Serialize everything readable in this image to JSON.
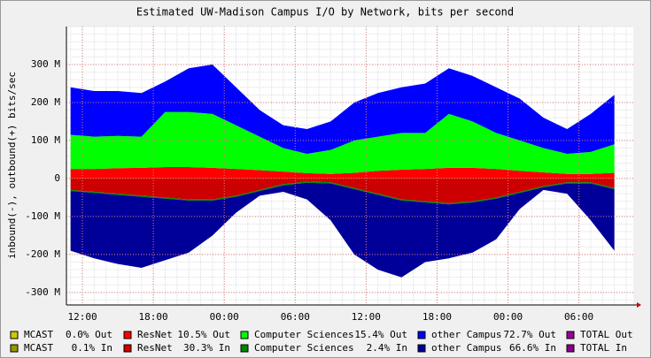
{
  "chart_data": {
    "type": "area",
    "title": "Estimated UW-Madison Campus I/O by Network, bits per second",
    "y_label": "inbound(-), outbound(+) bits/sec",
    "x": [
      11,
      13,
      15,
      17,
      19,
      21,
      23,
      25,
      27,
      29,
      31,
      33,
      35,
      37,
      39,
      41,
      43,
      45,
      47,
      49,
      51,
      53,
      55,
      57
    ],
    "xlim": [
      10.65,
      58.6
    ],
    "xticks": [
      {
        "value": 12,
        "label": "12:00"
      },
      {
        "value": 18,
        "label": "18:00"
      },
      {
        "value": 24,
        "label": "00:00"
      },
      {
        "value": 30,
        "label": "06:00"
      },
      {
        "value": 36,
        "label": "12:00"
      },
      {
        "value": 42,
        "label": "18:00"
      },
      {
        "value": 48,
        "label": "00:00"
      },
      {
        "value": 54,
        "label": "06:00"
      }
    ],
    "ylim": [
      -333,
      400
    ],
    "yticks": [
      {
        "value": -300,
        "label": "-300 M"
      },
      {
        "value": -200,
        "label": "-200 M"
      },
      {
        "value": -100,
        "label": "-100 M"
      },
      0,
      {
        "value": 100,
        "label": "100 M"
      },
      {
        "value": 200,
        "label": "200 M"
      },
      {
        "value": 300,
        "label": "300 M"
      }
    ],
    "grid": true,
    "series": [
      {
        "name": "MCAST",
        "stat": "0.0% Out",
        "color": "#cccc00",
        "values": [
          0,
          0,
          0,
          0,
          0,
          0,
          0,
          0,
          0,
          0,
          0,
          0,
          0,
          0,
          0,
          0,
          0,
          0,
          0,
          0,
          0,
          0,
          0,
          0
        ]
      },
      {
        "name": "ResNet",
        "stat": "10.5% Out",
        "color": "#ff0000",
        "values": [
          25,
          25,
          27,
          28,
          30,
          30,
          28,
          25,
          22,
          18,
          14,
          12,
          15,
          20,
          23,
          25,
          28,
          28,
          25,
          20,
          16,
          12,
          12,
          15
        ]
      },
      {
        "name": "Computer Sciences",
        "stat": "15.4% Out",
        "color": "#00ff00",
        "values": [
          90,
          85,
          85,
          82,
          145,
          145,
          142,
          115,
          88,
          62,
          51,
          63,
          85,
          90,
          97,
          95,
          142,
          122,
          95,
          80,
          64,
          53,
          58,
          75
        ]
      },
      {
        "name": "other Campus",
        "stat": "72.7% Out",
        "color": "#0000ff",
        "values": [
          125,
          120,
          118,
          115,
          80,
          115,
          130,
          100,
          70,
          60,
          65,
          75,
          100,
          115,
          120,
          130,
          120,
          120,
          120,
          110,
          80,
          65,
          100,
          130
        ]
      },
      {
        "name": "TOTAL Out",
        "color": "#990099"
      },
      {
        "name": "MCAST",
        "stat": "0.1% In",
        "color": "#999900",
        "values": [
          -0.2,
          -0.2,
          -0.2,
          -0.2,
          -0.2,
          -0.2,
          -0.2,
          -0.2,
          -0.2,
          -0.2,
          -0.2,
          -0.2,
          -0.2,
          -0.2,
          -0.2,
          -0.2,
          -0.2,
          -0.2,
          -0.2,
          -0.2,
          -0.2,
          -0.2,
          -0.2,
          -0.2
        ]
      },
      {
        "name": "ResNet",
        "stat": "30.3% In",
        "color": "#cc0000",
        "values": [
          -30,
          -35,
          -40,
          -45,
          -50,
          -55,
          -55,
          -45,
          -30,
          -15,
          -8,
          -10,
          -25,
          -40,
          -55,
          -60,
          -65,
          -60,
          -50,
          -35,
          -20,
          -10,
          -10,
          -25
        ]
      },
      {
        "name": "Computer Sciences",
        "stat": "2.4% In",
        "color": "#008800",
        "values": [
          -3,
          -3,
          -3,
          -3,
          -3,
          -3,
          -3,
          -3,
          -3,
          -3,
          -3,
          -3,
          -3,
          -3,
          -3,
          -3,
          -3,
          -3,
          -3,
          -3,
          -3,
          -3,
          -3,
          -3
        ]
      },
      {
        "name": "other Campus",
        "stat": "66.6% In",
        "color": "#000099",
        "values": [
          -157,
          -172,
          -182,
          -187,
          -162,
          -137,
          -92,
          -42,
          -12,
          -17,
          -44,
          -97,
          -172,
          -197,
          -202,
          -157,
          -142,
          -132,
          -107,
          -42,
          -7,
          -27,
          -97,
          -162
        ]
      },
      {
        "name": "TOTAL In",
        "color": "#880088"
      }
    ]
  }
}
